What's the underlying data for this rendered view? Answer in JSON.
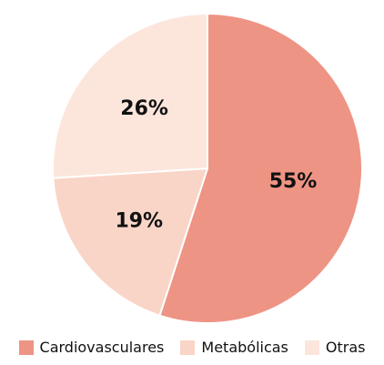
{
  "chart_data": {
    "type": "pie",
    "categories": [
      "Cardiovasculares",
      "Metabólicas",
      "Otras"
    ],
    "values": [
      55,
      19,
      26
    ],
    "value_labels": [
      "55%",
      "19%",
      "26%"
    ],
    "colors": [
      "#ee9484",
      "#f9d5c7",
      "#fce6dc"
    ],
    "legend": "bottom"
  }
}
